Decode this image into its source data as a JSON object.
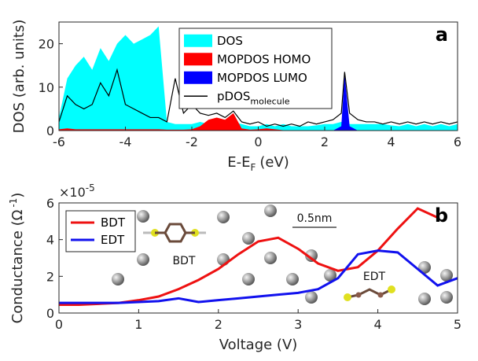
{
  "chart_data": [
    {
      "type": "area",
      "panel": "a",
      "x_label": [
        "E-E",
        "F",
        "(eV)"
      ],
      "y_label": "DOS (arb. units)",
      "x": [
        -6,
        -5.75,
        -5.5,
        -5.25,
        -5,
        -4.75,
        -4.5,
        -4.25,
        -4,
        -3.75,
        -3.5,
        -3.25,
        -3,
        -2.75,
        -2.5,
        -2.25,
        -2,
        -1.75,
        -1.5,
        -1.25,
        -1,
        -0.75,
        -0.5,
        -0.25,
        0,
        0.25,
        0.5,
        0.75,
        1,
        1.25,
        1.5,
        1.75,
        2,
        2.25,
        2.5,
        2.6,
        2.75,
        3,
        3.25,
        3.5,
        3.75,
        4,
        4.25,
        4.5,
        4.75,
        5,
        5.25,
        5.5,
        5.75,
        6
      ],
      "xlim": [
        -6,
        6
      ],
      "xticks": [
        -6,
        -4,
        -2,
        0,
        2,
        4,
        6
      ],
      "ylim": [
        0,
        25
      ],
      "yticks": [
        0,
        10,
        20
      ],
      "series": [
        {
          "name": "DOS",
          "color": "#00ffff",
          "style": "area",
          "values": [
            3,
            12,
            15,
            17,
            14,
            19,
            16,
            20,
            22,
            20,
            21,
            22,
            24,
            2,
            1.5,
            1.5,
            1.5,
            2,
            1.5,
            2,
            1.5,
            2,
            1.5,
            1,
            1,
            1.5,
            1,
            1.5,
            1,
            1,
            1,
            1.2,
            1.5,
            1.5,
            2,
            2,
            1.5,
            1.5,
            1.5,
            1.5,
            1.5,
            1.2,
            1,
            1.5,
            1,
            1.5,
            1,
            1.5,
            1,
            1.5
          ]
        },
        {
          "name": "MOPDOS HOMO",
          "color": "#ff0000",
          "style": "area",
          "values": [
            0.3,
            0.5,
            0.3,
            0.3,
            0.3,
            0.3,
            0.3,
            0.3,
            0.3,
            0.3,
            0.3,
            0.3,
            0.3,
            0.2,
            0.2,
            0.2,
            0.3,
            1,
            2.5,
            3,
            2.5,
            4,
            0.5,
            0.2,
            0.3,
            0.5,
            0.3,
            0.1,
            0.1,
            0.1,
            0.1,
            0.1,
            0.1,
            0.1,
            0.1,
            0.1,
            0.1,
            0.1,
            0.1,
            0.1,
            0.1,
            0.1,
            0.1,
            0.1,
            0.1,
            0.1,
            0.1,
            0.1,
            0.1,
            0.1
          ]
        },
        {
          "name": "MOPDOS LUMO",
          "color": "#0000ff",
          "style": "area",
          "values": [
            0,
            0,
            0,
            0,
            0,
            0,
            0,
            0,
            0,
            0,
            0,
            0,
            0,
            0,
            0,
            0,
            0,
            0,
            0,
            0,
            0,
            0,
            0,
            0,
            0,
            0,
            0,
            0,
            0,
            0,
            0,
            0,
            0,
            0,
            1,
            13,
            1,
            0,
            0,
            0,
            0,
            0,
            0,
            0,
            0,
            0,
            0,
            0,
            0,
            0
          ]
        },
        {
          "name": "pDOS",
          "name_sub": "molecule",
          "color": "#000000",
          "style": "line",
          "values": [
            2,
            8,
            6,
            5,
            6,
            11,
            8,
            14,
            6,
            5,
            4,
            3,
            3,
            2,
            12,
            4,
            6,
            4,
            3.5,
            4,
            3,
            4.5,
            2,
            1.5,
            2,
            1,
            1.5,
            1,
            1.5,
            1,
            2,
            1.5,
            2,
            2.5,
            4,
            13.5,
            4,
            2.5,
            2,
            2,
            1.5,
            2,
            1.5,
            2,
            1.5,
            2,
            1.5,
            2,
            1.5,
            2
          ]
        }
      ]
    },
    {
      "type": "line",
      "panel": "b",
      "x_label": "Voltage (V)",
      "y_label": [
        "Conductance (Ω",
        "-1",
        ")"
      ],
      "y_exponent": [
        "×10",
        "-5"
      ],
      "annotations": [
        "BDT",
        "EDT",
        "0.5nm"
      ],
      "x": [
        0,
        0.25,
        0.5,
        0.75,
        1,
        1.25,
        1.5,
        1.75,
        2,
        2.25,
        2.5,
        2.75,
        3,
        3.25,
        3.5,
        3.75,
        4,
        4.25,
        4.5,
        4.75,
        5
      ],
      "xlim": [
        0,
        5
      ],
      "xticks": [
        0,
        1,
        2,
        3,
        4,
        5
      ],
      "ylim": [
        0,
        6
      ],
      "yticks": [
        0,
        2,
        4,
        6
      ],
      "series": [
        {
          "name": "BDT",
          "color": "#ee1111",
          "values": [
            0.45,
            0.45,
            0.5,
            0.55,
            0.7,
            0.9,
            1.3,
            1.8,
            2.4,
            3.2,
            3.9,
            4.1,
            3.5,
            2.7,
            2.3,
            2.5,
            3.4,
            4.6,
            5.7,
            5.2,
            null
          ]
        },
        {
          "name": "EDT",
          "color": "#1111ee",
          "values": [
            0.55,
            0.55,
            0.55,
            0.55,
            0.6,
            0.65,
            0.8,
            0.6,
            0.7,
            0.8,
            0.9,
            1.0,
            1.1,
            1.3,
            1.9,
            3.2,
            3.4,
            3.3,
            2.4,
            1.5,
            1.9
          ]
        }
      ]
    }
  ]
}
